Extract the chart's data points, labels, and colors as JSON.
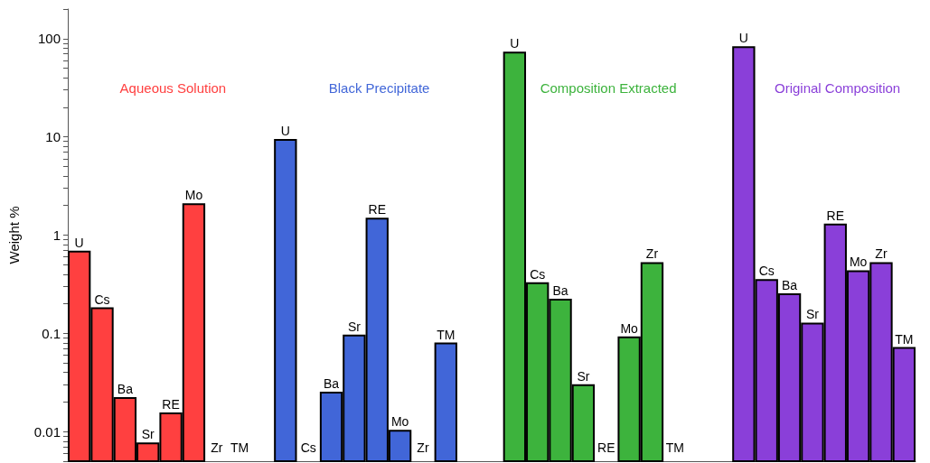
{
  "chart_data": {
    "type": "bar",
    "ylabel": "Weight %",
    "categories": [
      "U",
      "Cs",
      "Ba",
      "Sr",
      "RE",
      "Mo",
      "Zr",
      "TM",
      null,
      "U",
      "Cs",
      "Ba",
      "Sr",
      "RE",
      "Mo",
      "Zr",
      "TM",
      null,
      null,
      "U",
      "Cs",
      "Ba",
      "Sr",
      "RE",
      "Mo",
      "Zr",
      "TM",
      null,
      null,
      "U",
      "Cs",
      "Ba",
      "Sr",
      "RE",
      "Mo",
      "Zr",
      "TM"
    ],
    "series": [
      {
        "name": "Aqueous Solution",
        "color": "#ff4040",
        "values": [
          0.68,
          0.18,
          0.022,
          0.0076,
          0.0153,
          2.06,
          null,
          null,
          null,
          null,
          null,
          null,
          null,
          null,
          null,
          null,
          null,
          null,
          null,
          null,
          null,
          null,
          null,
          null,
          null,
          null,
          null,
          null,
          null,
          null,
          null,
          null,
          null,
          null,
          null,
          null,
          null
        ]
      },
      {
        "name": "Black Precipitate",
        "color": "#4166d8",
        "values": [
          null,
          null,
          null,
          null,
          null,
          null,
          null,
          null,
          null,
          9.3,
          null,
          0.025,
          0.095,
          1.47,
          0.0102,
          null,
          0.079,
          null,
          null,
          null,
          null,
          null,
          null,
          null,
          null,
          null,
          null,
          null,
          null,
          null,
          null,
          null,
          null,
          null,
          null,
          null,
          null
        ]
      },
      {
        "name": "Composition Extracted",
        "color": "#3db33d",
        "values": [
          null,
          null,
          null,
          null,
          null,
          null,
          null,
          null,
          null,
          null,
          null,
          null,
          null,
          null,
          null,
          null,
          null,
          null,
          null,
          72,
          0.325,
          0.22,
          0.0297,
          null,
          0.091,
          0.52,
          null,
          null,
          null,
          null,
          null,
          null,
          null,
          null,
          null,
          null,
          null
        ]
      },
      {
        "name": "Original Composition",
        "color": "#8a3fd9",
        "values": [
          null,
          null,
          null,
          null,
          null,
          null,
          null,
          null,
          null,
          null,
          null,
          null,
          null,
          null,
          null,
          null,
          null,
          null,
          null,
          null,
          null,
          null,
          null,
          null,
          null,
          null,
          null,
          null,
          null,
          82,
          0.35,
          0.25,
          0.126,
          1.28,
          0.43,
          0.52,
          0.071
        ]
      }
    ],
    "log": "y",
    "ylim": [
      0.005,
      200
    ],
    "yticks": [
      {
        "value": 0.005,
        "label": null
      },
      {
        "value": 0.006,
        "label": null
      },
      {
        "value": 0.007,
        "label": null
      },
      {
        "value": 0.008,
        "label": null
      },
      {
        "value": 0.009,
        "label": null
      },
      0.01,
      {
        "value": 0.02,
        "label": null
      },
      {
        "value": 0.03,
        "label": null
      },
      {
        "value": 0.04,
        "label": null
      },
      {
        "value": 0.05,
        "label": null
      },
      {
        "value": 0.06,
        "label": null
      },
      {
        "value": 0.07,
        "label": null
      },
      {
        "value": 0.08,
        "label": null
      },
      {
        "value": 0.09,
        "label": null
      },
      0.1,
      {
        "value": 0.2,
        "label": null
      },
      {
        "value": 0.3,
        "label": null
      },
      {
        "value": 0.4,
        "label": null
      },
      {
        "value": 0.5,
        "label": null
      },
      {
        "value": 0.6,
        "label": null
      },
      {
        "value": 0.7,
        "label": null
      },
      {
        "value": 0.8,
        "label": null
      },
      {
        "value": 0.9,
        "label": null
      },
      1,
      {
        "value": 2,
        "label": null
      },
      {
        "value": 3,
        "label": null
      },
      {
        "value": 4,
        "label": null
      },
      {
        "value": 5,
        "label": null
      },
      {
        "value": 6,
        "label": null
      },
      {
        "value": 7,
        "label": null
      },
      {
        "value": 8,
        "label": null
      },
      {
        "value": 9,
        "label": null
      },
      10,
      {
        "value": 20,
        "label": null
      },
      {
        "value": 30,
        "label": null
      },
      {
        "value": 40,
        "label": null
      },
      {
        "value": 50,
        "label": null
      },
      {
        "value": 60,
        "label": null
      },
      {
        "value": 70,
        "label": null
      },
      {
        "value": 80,
        "label": null
      },
      {
        "value": 90,
        "label": null
      },
      100,
      {
        "value": 200,
        "label": null
      }
    ],
    "tick_labels": "y",
    "grid": false,
    "legend": false
  }
}
